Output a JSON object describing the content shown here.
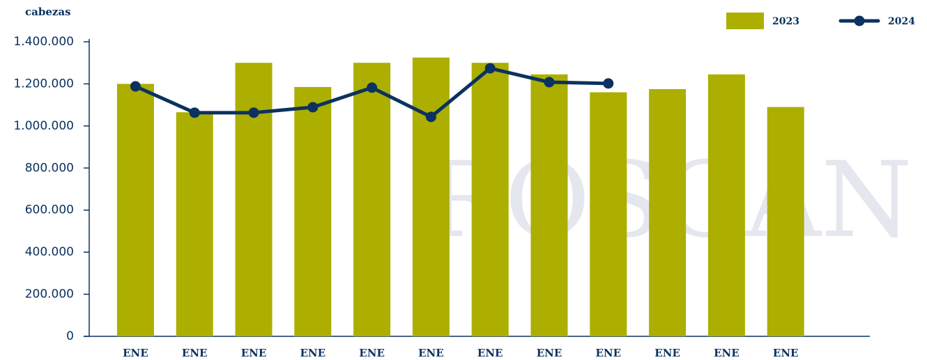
{
  "chart_data": {
    "type": "bar-line",
    "y_label": "cabezas",
    "watermark": "ROSGAN",
    "categories": [
      "ENE",
      "ENE",
      "ENE",
      "ENE",
      "ENE",
      "ENE",
      "ENE",
      "ENE",
      "ENE",
      "ENE",
      "ENE",
      "ENE"
    ],
    "series": [
      {
        "name": "2023",
        "type": "bar",
        "color": "#acaf00",
        "values": [
          1200000,
          1065000,
          1300000,
          1185000,
          1300000,
          1325000,
          1300000,
          1245000,
          1160000,
          1175000,
          1245000,
          1090000
        ]
      },
      {
        "name": "2024",
        "type": "line",
        "color": "#0b3260",
        "values": [
          1188000,
          1063000,
          1063000,
          1089000,
          1182000,
          1043000,
          1274000,
          1208000,
          1202000,
          null,
          null,
          null
        ]
      }
    ],
    "ylim": [
      0,
      1400000
    ],
    "yticks": [
      0,
      {
        "value": 200000,
        "label": "200.000"
      },
      {
        "value": 400000,
        "label": "400.000"
      },
      {
        "value": 600000,
        "label": "600.000"
      },
      {
        "value": 800000,
        "label": "800.000"
      },
      {
        "value": 1000000,
        "label": "1.000.000"
      },
      {
        "value": 1200000,
        "label": "1.200.000"
      },
      {
        "value": 1400000,
        "label": "1.400.000"
      }
    ],
    "legend": "top-right"
  }
}
